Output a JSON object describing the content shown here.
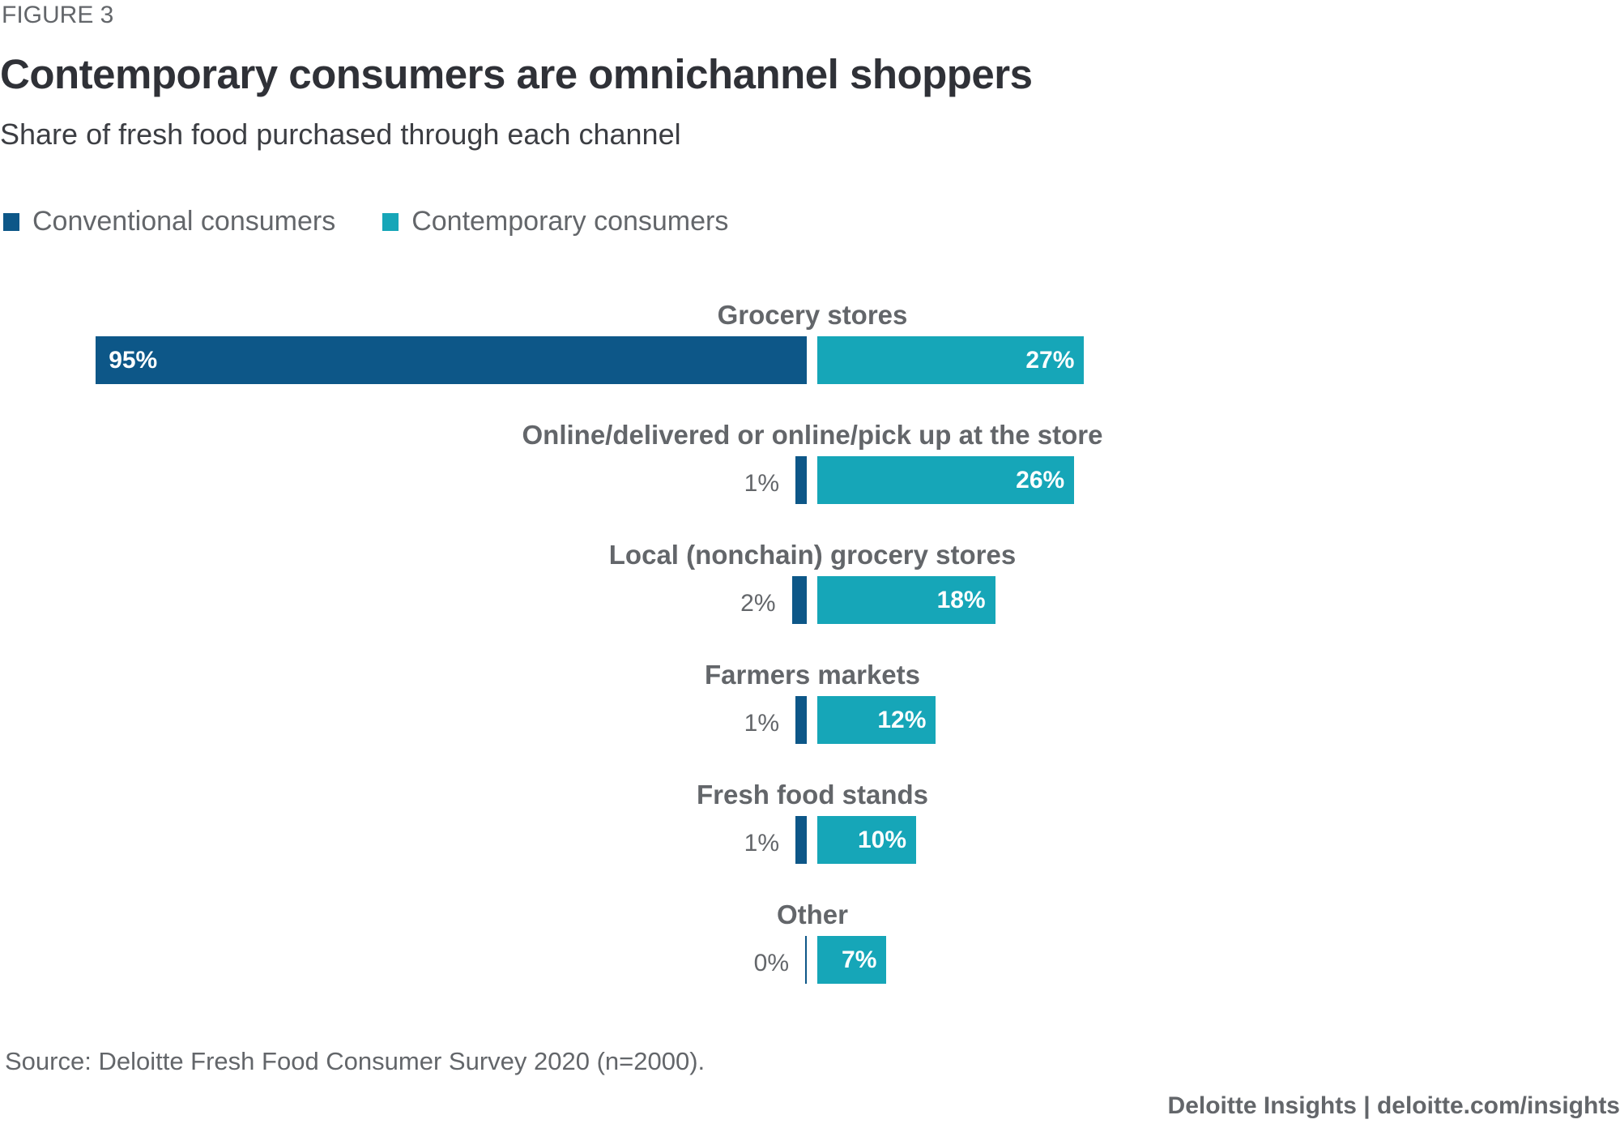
{
  "figure_label": "FIGURE 3",
  "chart_data": {
    "type": "bar",
    "orientation": "horizontal-diverging",
    "title": "Contemporary consumers are omnichannel shoppers",
    "subtitle": "Share of fresh food purchased through each channel",
    "categories": [
      "Grocery stores",
      "Online/delivered or online/pick up at the store",
      "Local (nonchain) grocery stores",
      "Farmers markets",
      "Fresh food stands",
      "Other"
    ],
    "series": [
      {
        "name": "Conventional consumers",
        "color": "#0d5788",
        "values": [
          95,
          1,
          2,
          1,
          1,
          0
        ],
        "labels": [
          "95%",
          "1%",
          "2%",
          "1%",
          "1%",
          "0%"
        ]
      },
      {
        "name": "Contemporary consumers",
        "color": "#16a6b8",
        "values": [
          27,
          26,
          18,
          12,
          10,
          7
        ],
        "labels": [
          "27%",
          "26%",
          "18%",
          "12%",
          "10%",
          "7%"
        ]
      }
    ],
    "legend": "top-left",
    "grid": false,
    "unit": "%"
  },
  "source": "Source: Deloitte Fresh Food Consumer Survey 2020 (n=2000).",
  "footer": "Deloitte Insights | deloitte.com/insights"
}
